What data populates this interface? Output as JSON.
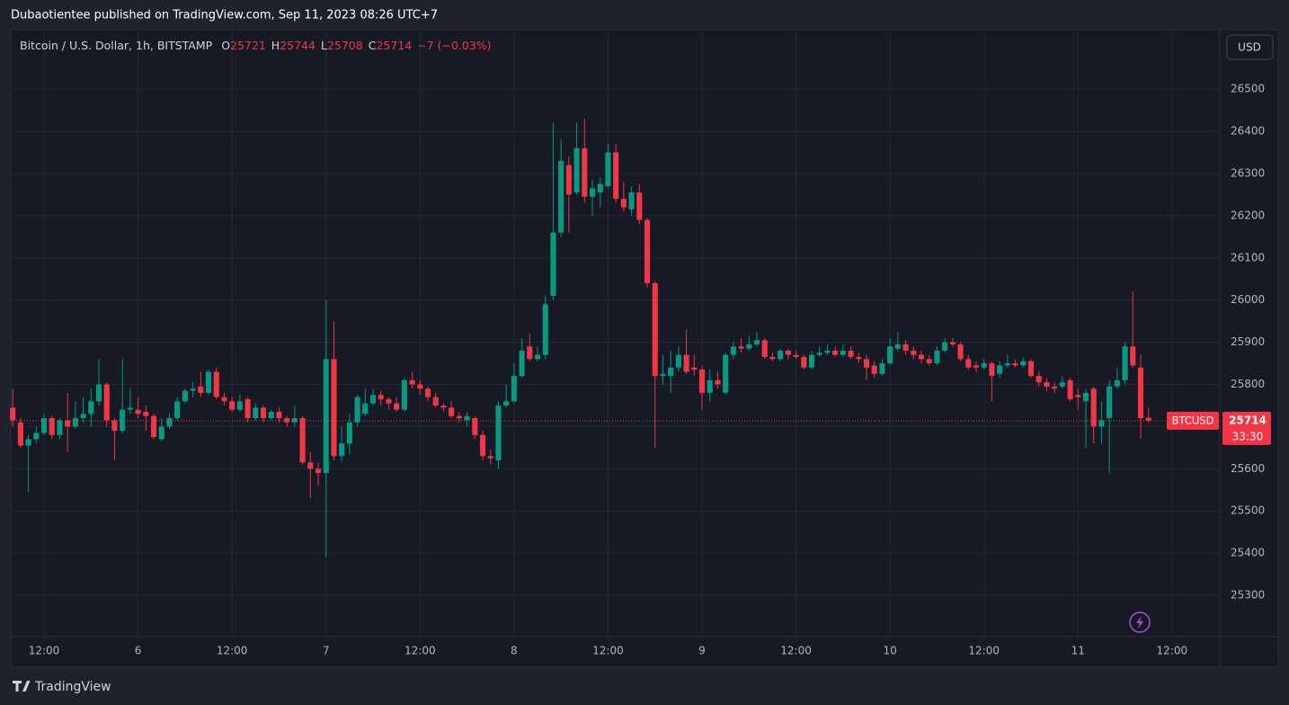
{
  "header": {
    "text": "Dubaotientee published on TradingView.com, Sep 11, 2023 08:26 UTC+7"
  },
  "footer": {
    "brand": "TradingView"
  },
  "chart_data": {
    "type": "candlestick",
    "title": "Bitcoin / U.S. Dollar, 1h, BITSTAMP",
    "legend_labels": [
      "O",
      "H",
      "L",
      "C"
    ],
    "change": "−7 (−0.03%)",
    "currency": "USD",
    "symbol": "BTCUSD",
    "countdown": "33:30",
    "up_color": "#089981",
    "down_color": "#f23645",
    "grid": true,
    "xlim": [
      -0.25,
      154.1
    ],
    "xticks": [
      {
        "value": 4,
        "label": "12:00"
      },
      {
        "value": 16,
        "label": "6"
      },
      {
        "value": 28,
        "label": "12:00"
      },
      {
        "value": 40,
        "label": "7"
      },
      {
        "value": 52,
        "label": "12:00"
      },
      {
        "value": 64,
        "label": "8"
      },
      {
        "value": 76,
        "label": "12:00"
      },
      {
        "value": 88,
        "label": "9"
      },
      {
        "value": 100,
        "label": "12:00"
      },
      {
        "value": 112,
        "label": "10"
      },
      {
        "value": 124,
        "label": "12:00"
      },
      {
        "value": 136,
        "label": "11"
      },
      {
        "value": 148,
        "label": "12:00"
      }
    ],
    "ylim": [
      25202,
      26641
    ],
    "yticks": [
      25300,
      25400,
      25500,
      25600,
      25700,
      25800,
      25900,
      26000,
      26100,
      26200,
      26300,
      26400,
      26500
    ],
    "open": [
      25745,
      25710,
      25655,
      25670,
      25685,
      25720,
      25680,
      25715,
      25700,
      25720,
      25730,
      25760,
      25800,
      25715,
      25690,
      25740,
      25740,
      25735,
      25725,
      25670,
      25700,
      25720,
      25760,
      25785,
      25795,
      25780,
      25830,
      25770,
      25760,
      25740,
      25765,
      25720,
      25745,
      25720,
      25735,
      25720,
      25710,
      25720,
      25615,
      25600,
      25590,
      25860,
      25630,
      25660,
      25710,
      25730,
      25755,
      25775,
      25765,
      25755,
      25740,
      25810,
      25800,
      25790,
      25770,
      25750,
      25745,
      25725,
      25715,
      25720,
      25680,
      25630,
      25620,
      25750,
      25760,
      25820,
      25890,
      25860,
      25870,
      26010,
      26160,
      26320,
      26255,
      26360,
      26245,
      26255,
      26270,
      26350,
      26240,
      26215,
      26255,
      26190,
      26040,
      25820,
      25820,
      25840,
      25870,
      25840,
      25835,
      25780,
      25810,
      25780,
      25870,
      25890,
      25885,
      25895,
      25905,
      25865,
      25860,
      25880,
      25870,
      25865,
      25840,
      25870,
      25875,
      25880,
      25870,
      25880,
      25865,
      25860,
      25845,
      25825,
      25850,
      25885,
      25895,
      25880,
      25870,
      25860,
      25850,
      25880,
      25900,
      25895,
      25860,
      25845,
      25840,
      25850,
      25825,
      25845,
      25850,
      25845,
      25855,
      25820,
      25805,
      25795,
      25795,
      25810,
      25775,
      25760,
      25790,
      25700,
      25720,
      25795,
      25810,
      25890,
      25840,
      25721
    ],
    "high": [
      25790,
      25720,
      25680,
      25700,
      25730,
      25725,
      25720,
      25780,
      25760,
      25770,
      25790,
      25860,
      25805,
      25720,
      25860,
      25790,
      25770,
      25750,
      25730,
      25720,
      25730,
      25770,
      25790,
      25805,
      25830,
      25835,
      25840,
      25780,
      25770,
      25775,
      25770,
      25755,
      25750,
      25740,
      25745,
      25725,
      25750,
      25725,
      25640,
      25615,
      26000,
      25950,
      25700,
      25730,
      25775,
      25790,
      25790,
      25785,
      25770,
      25770,
      25815,
      25830,
      25810,
      25795,
      25780,
      25755,
      25760,
      25735,
      25735,
      25725,
      25690,
      25645,
      25760,
      25800,
      25850,
      25910,
      25920,
      25890,
      26010,
      26420,
      26380,
      26340,
      26420,
      26430,
      26285,
      26290,
      26370,
      26370,
      26280,
      26270,
      26275,
      26195,
      26045,
      25870,
      25880,
      25890,
      25930,
      25870,
      25845,
      25835,
      25830,
      25875,
      25900,
      25910,
      25915,
      25925,
      25910,
      25875,
      25885,
      25885,
      25880,
      25870,
      25880,
      25890,
      25895,
      25890,
      25895,
      25890,
      25875,
      25870,
      25855,
      25860,
      25910,
      25925,
      25905,
      25890,
      25880,
      25870,
      25890,
      25910,
      25910,
      25900,
      25870,
      25855,
      25860,
      25855,
      25855,
      25870,
      25860,
      25865,
      25860,
      25830,
      25815,
      25805,
      25820,
      25815,
      25790,
      25790,
      25795,
      25760,
      25810,
      25840,
      25900,
      26020,
      25870,
      25744
    ],
    "low": [
      25700,
      25650,
      25545,
      25660,
      25680,
      25670,
      25670,
      25640,
      25695,
      25710,
      25700,
      25750,
      25700,
      25620,
      25685,
      25730,
      25720,
      25690,
      25670,
      25665,
      25695,
      25715,
      25755,
      25770,
      25770,
      25775,
      25765,
      25750,
      25735,
      25735,
      25710,
      25715,
      25710,
      25715,
      25710,
      25700,
      25700,
      25610,
      25530,
      25560,
      25390,
      25620,
      25615,
      25635,
      25700,
      25725,
      25750,
      25750,
      25740,
      25735,
      25735,
      25790,
      25775,
      25760,
      25745,
      25735,
      25720,
      25710,
      25700,
      25670,
      25620,
      25610,
      25600,
      25745,
      25755,
      25815,
      25855,
      25855,
      25860,
      26000,
      26150,
      26160,
      26250,
      26230,
      26200,
      26220,
      26265,
      26230,
      26210,
      26200,
      26180,
      26030,
      25650,
      25800,
      25780,
      25830,
      25825,
      25820,
      25740,
      25760,
      25790,
      25775,
      25860,
      25875,
      25880,
      25890,
      25860,
      25855,
      25855,
      25860,
      25860,
      25835,
      25835,
      25865,
      25870,
      25865,
      25865,
      25860,
      25850,
      25810,
      25815,
      25820,
      25845,
      25880,
      25870,
      25860,
      25850,
      25845,
      25845,
      25875,
      25890,
      25855,
      25835,
      25830,
      25835,
      25760,
      25815,
      25840,
      25840,
      25840,
      25815,
      25795,
      25785,
      25780,
      25790,
      25760,
      25740,
      25650,
      25660,
      25660,
      25590,
      25790,
      25800,
      25840,
      25670,
      25708
    ],
    "close": [
      25715,
      25655,
      25670,
      25685,
      25720,
      25680,
      25715,
      25700,
      25720,
      25730,
      25760,
      25800,
      25715,
      25690,
      25740,
      25745,
      25730,
      25725,
      25675,
      25700,
      25720,
      25760,
      25785,
      25790,
      25780,
      25830,
      25770,
      25760,
      25740,
      25760,
      25720,
      25745,
      25720,
      25735,
      25720,
      25710,
      25720,
      25615,
      25600,
      25590,
      25860,
      25630,
      25660,
      25710,
      25770,
      25755,
      25775,
      25765,
      25755,
      25740,
      25810,
      25800,
      25790,
      25770,
      25750,
      25745,
      25725,
      25720,
      25725,
      25680,
      25630,
      25625,
      25750,
      25760,
      25820,
      25880,
      25860,
      25870,
      25990,
      26160,
      26330,
      26250,
      26360,
      26245,
      26265,
      26275,
      26350,
      26240,
      26220,
      26255,
      26190,
      26040,
      25820,
      25825,
      25840,
      25870,
      25830,
      25835,
      25780,
      25810,
      25800,
      25870,
      25890,
      25885,
      25895,
      25905,
      25865,
      25860,
      25880,
      25870,
      25865,
      25840,
      25870,
      25875,
      25880,
      25870,
      25880,
      25865,
      25860,
      25840,
      25825,
      25850,
      25890,
      25895,
      25880,
      25870,
      25860,
      25850,
      25880,
      25900,
      25895,
      25860,
      25840,
      25840,
      25850,
      25820,
      25845,
      25850,
      25845,
      25855,
      25820,
      25805,
      25795,
      25790,
      25805,
      25765,
      25770,
      25780,
      25700,
      25715,
      25795,
      25810,
      25890,
      25845,
      25720,
      25714
    ]
  }
}
